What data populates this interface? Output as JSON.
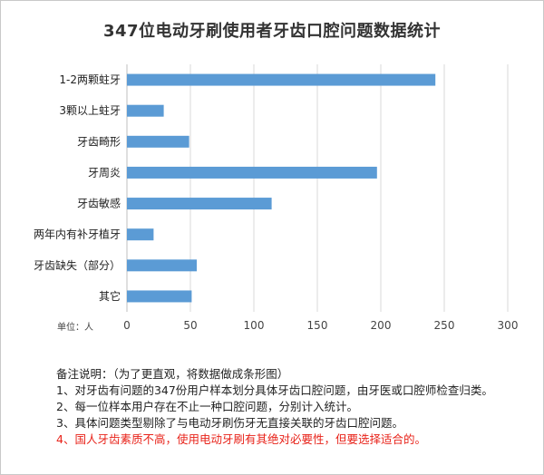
{
  "title": "347位电动牙刷使用者牙齿口腔问题数据统计",
  "unit_label": "单位：人",
  "notes": {
    "heading": "备注说明：（为了更直观，将数据做成条形图）",
    "items": [
      "1、对牙齿有问题的347份用户样本划分具体牙齿口腔问题，由牙医或口腔师检查归类。",
      "2、每一位样本用户存在不止一种口腔问题，分别计入统计。",
      "3、具体问题类型剔除了与电动牙刷伤牙无直接关联的牙齿口腔问题。",
      "4、国人牙齿素质不高，使用电动牙刷有其绝对必要性，但要选择适合的。"
    ]
  },
  "colors": {
    "bar": "#5b9bd5",
    "warning": "#e8231a",
    "grid": "#d9d9d9"
  },
  "chart_data": {
    "type": "bar",
    "orientation": "horizontal",
    "title": "347位电动牙刷使用者牙齿口腔问题数据统计",
    "categories": [
      "1-2两颗蛀牙",
      "3颗以上蛀牙",
      "牙齿畸形",
      "牙周炎",
      "牙齿敏感",
      "两年内有补牙植牙",
      "牙齿缺失（部分）",
      "其它"
    ],
    "values": [
      243,
      29,
      49,
      197,
      114,
      21,
      55,
      51
    ],
    "xlabel": "",
    "ylabel": "",
    "xlim": [
      0,
      300
    ],
    "xticks": [
      0,
      50,
      100,
      150,
      200,
      250,
      300
    ],
    "grid": true
  }
}
